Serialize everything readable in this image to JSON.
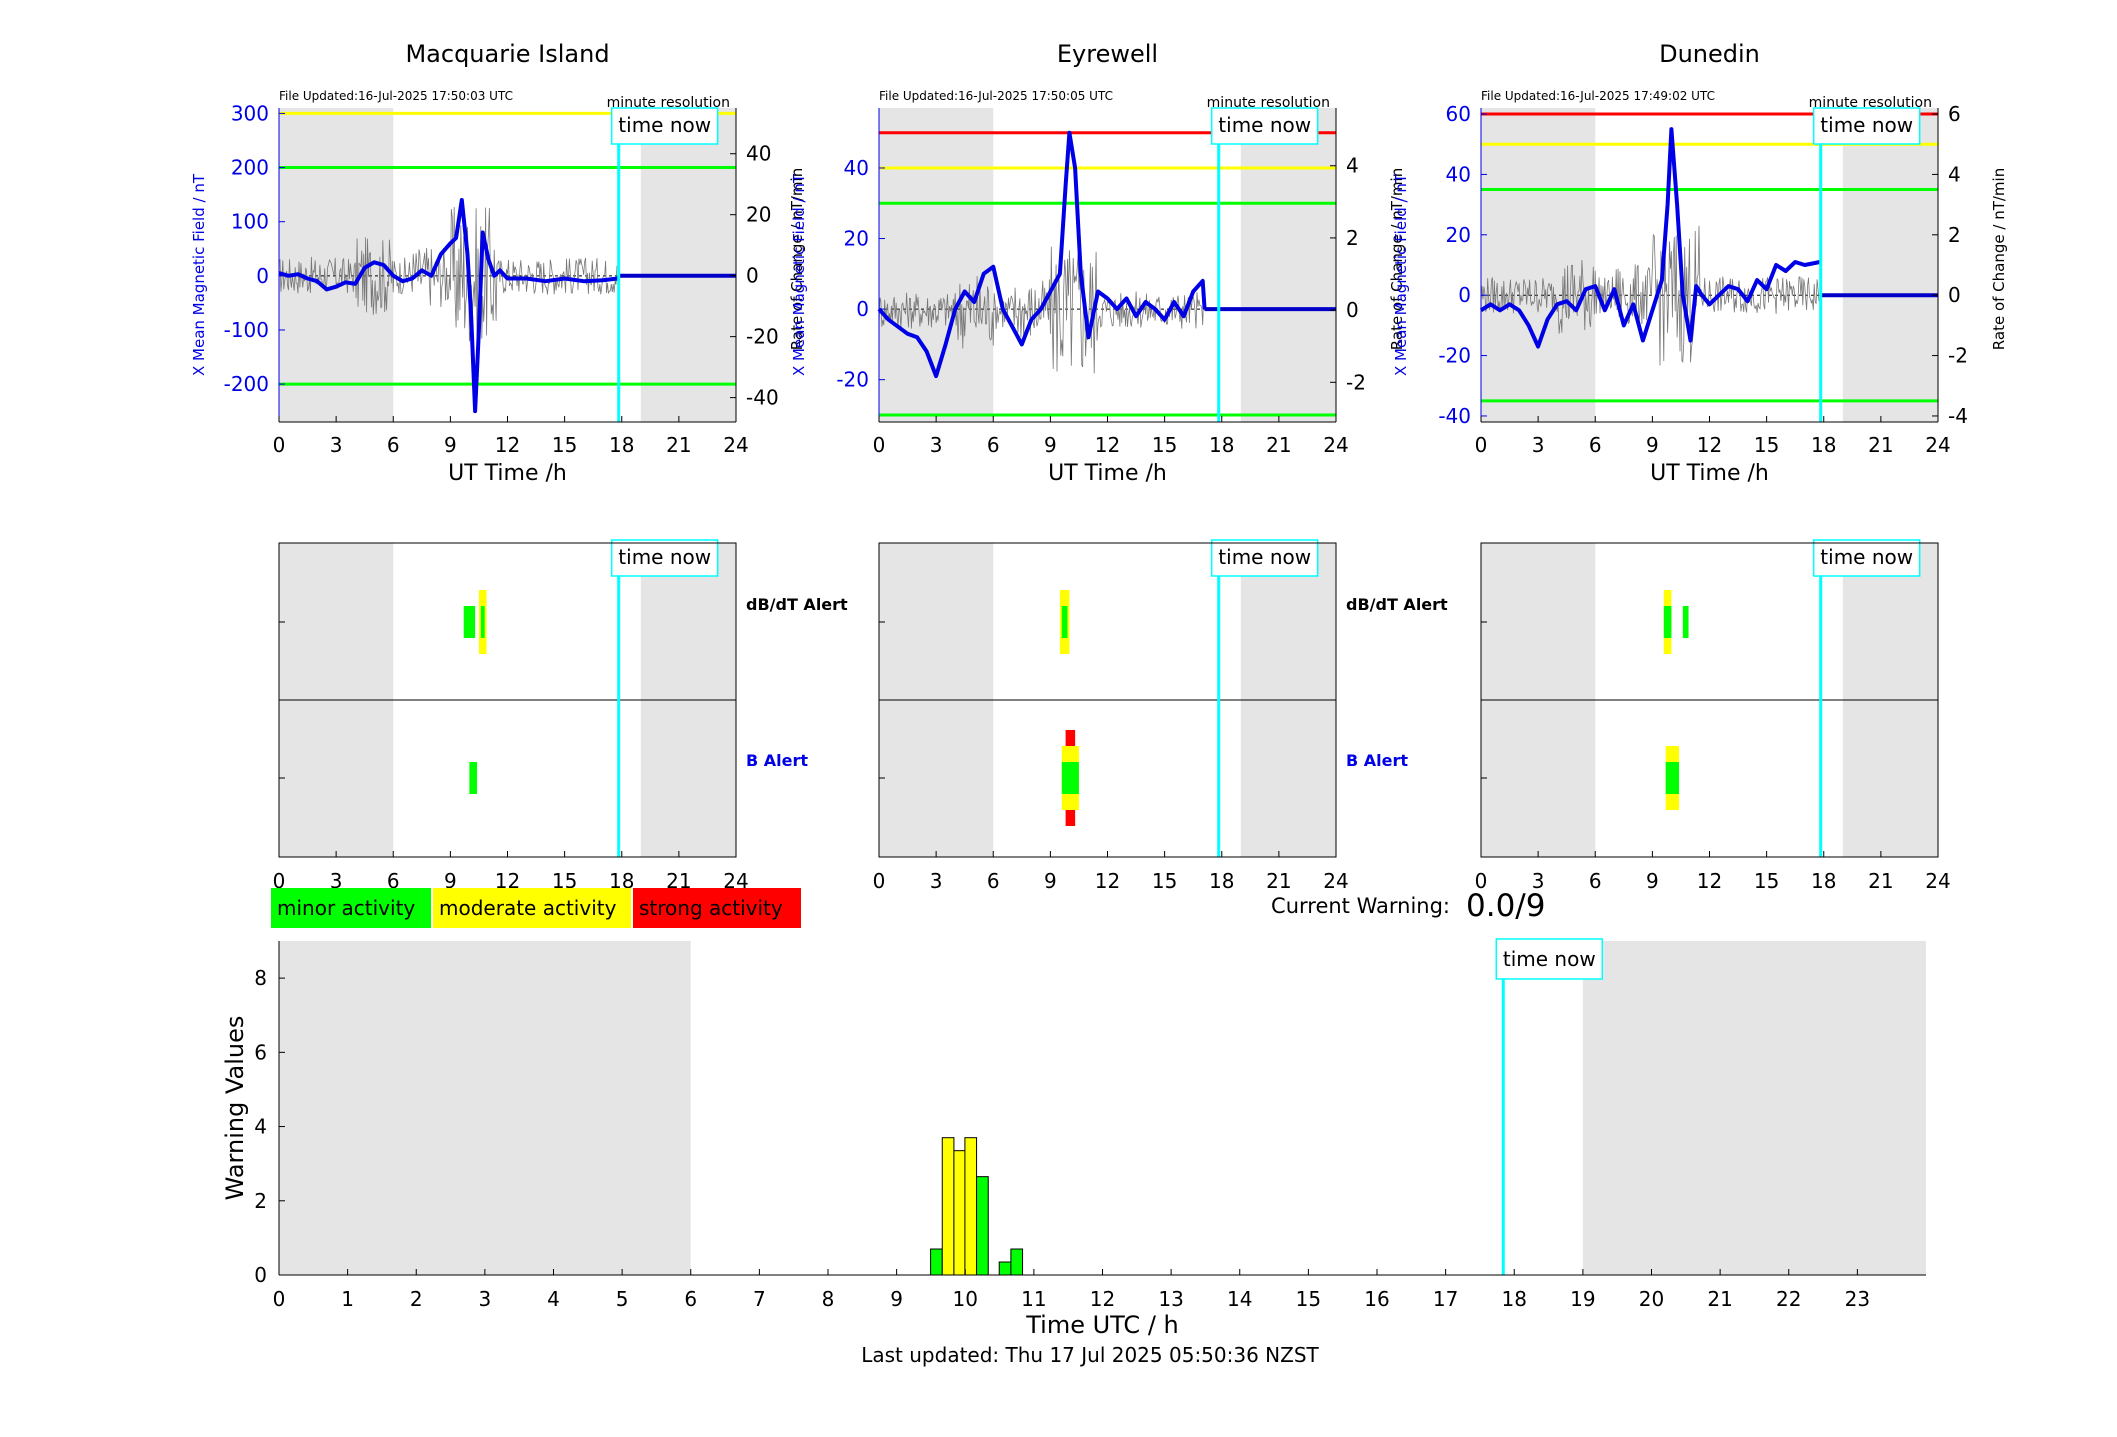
{
  "stations": [
    {
      "title": "Macquarie Island",
      "file_updated": "File Updated:16-Jul-2025 17:50:03 UTC",
      "resolution": "minute resolution",
      "ylabel_left": "X Mean Magnetic Field / nT",
      "ylabel_right": "Rate of Change / nT/min",
      "xlabel": "UT Time /h",
      "ylim": [
        -270,
        310
      ],
      "yticks": [
        -200,
        -100,
        0,
        100,
        200,
        300
      ],
      "ylim_right": [
        -48,
        55
      ],
      "yticks_right": [
        -40,
        -20,
        0,
        20,
        40
      ],
      "thresholds": [
        {
          "value": 300,
          "color": "#ffff00"
        },
        {
          "value": 200,
          "color": "#00ff00"
        },
        {
          "value": -200,
          "color": "#00ff00"
        }
      ],
      "series_field": [
        [
          0,
          5
        ],
        [
          0.5,
          0
        ],
        [
          1,
          3
        ],
        [
          1.5,
          -5
        ],
        [
          2,
          -10
        ],
        [
          2.5,
          -25
        ],
        [
          3,
          -20
        ],
        [
          3.5,
          -12
        ],
        [
          4,
          -15
        ],
        [
          4.5,
          15
        ],
        [
          5,
          25
        ],
        [
          5.5,
          20
        ],
        [
          6,
          0
        ],
        [
          6.5,
          -10
        ],
        [
          7,
          -5
        ],
        [
          7.5,
          10
        ],
        [
          8,
          0
        ],
        [
          8.5,
          40
        ],
        [
          9,
          60
        ],
        [
          9.3,
          70
        ],
        [
          9.6,
          140
        ],
        [
          9.9,
          40
        ],
        [
          10.1,
          -80
        ],
        [
          10.3,
          -250
        ],
        [
          10.5,
          -100
        ],
        [
          10.7,
          80
        ],
        [
          11,
          30
        ],
        [
          11.3,
          0
        ],
        [
          11.6,
          10
        ],
        [
          12,
          -5
        ],
        [
          13,
          -5
        ],
        [
          14,
          -10
        ],
        [
          15,
          -5
        ],
        [
          16,
          -10
        ],
        [
          17,
          -8
        ],
        [
          17.8,
          -5
        ]
      ],
      "series_field_flat": [
        [
          17.8,
          0
        ],
        [
          24,
          0
        ]
      ],
      "alerts": {
        "dbdt": [
          {
            "start": 9.7,
            "end": 10.3,
            "level": "minor"
          },
          {
            "start": 10.5,
            "end": 10.9,
            "level": "moderate"
          },
          {
            "start": 10.6,
            "end": 10.8,
            "level": "minor"
          }
        ],
        "b": [
          {
            "start": 10.0,
            "end": 10.4,
            "level": "minor"
          }
        ]
      }
    },
    {
      "title": "Eyrewell",
      "file_updated": "File Updated:16-Jul-2025 17:50:05 UTC",
      "resolution": "minute resolution",
      "ylabel_left": "X Mean Magnetic Field / nT",
      "ylabel_right": "Rate of Change / nT/min",
      "xlabel": "UT Time /h",
      "ylim": [
        -32,
        57
      ],
      "yticks": [
        -20,
        0,
        20,
        40
      ],
      "ylim_right": [
        -3.1,
        5.6
      ],
      "yticks_right": [
        -2,
        0,
        2,
        4
      ],
      "thresholds": [
        {
          "value": 50,
          "color": "#ff0000"
        },
        {
          "value": 40,
          "color": "#ffff00"
        },
        {
          "value": 30,
          "color": "#00ff00"
        },
        {
          "value": -30,
          "color": "#00ff00"
        }
      ],
      "series_field": [
        [
          0,
          0
        ],
        [
          0.5,
          -3
        ],
        [
          1,
          -5
        ],
        [
          1.5,
          -7
        ],
        [
          2,
          -8
        ],
        [
          2.5,
          -12
        ],
        [
          3,
          -19
        ],
        [
          3.5,
          -10
        ],
        [
          4,
          0
        ],
        [
          4.5,
          5
        ],
        [
          5,
          2
        ],
        [
          5.5,
          10
        ],
        [
          6,
          12
        ],
        [
          6.5,
          0
        ],
        [
          7,
          -5
        ],
        [
          7.5,
          -10
        ],
        [
          8,
          -3
        ],
        [
          8.5,
          0
        ],
        [
          9,
          5
        ],
        [
          9.5,
          10
        ],
        [
          9.8,
          35
        ],
        [
          10,
          50
        ],
        [
          10.3,
          40
        ],
        [
          10.6,
          10
        ],
        [
          11,
          -8
        ],
        [
          11.5,
          5
        ],
        [
          12,
          3
        ],
        [
          12.5,
          0
        ],
        [
          13,
          3
        ],
        [
          13.5,
          -2
        ],
        [
          14,
          2
        ],
        [
          14.5,
          0
        ],
        [
          15,
          -3
        ],
        [
          15.5,
          2
        ],
        [
          16,
          -2
        ],
        [
          16.5,
          5
        ],
        [
          17,
          8
        ],
        [
          17.1,
          0
        ]
      ],
      "series_field_flat": [
        [
          17.1,
          0
        ],
        [
          24,
          0
        ]
      ],
      "alerts": {
        "dbdt": [
          {
            "start": 9.5,
            "end": 10.0,
            "level": "moderate"
          },
          {
            "start": 9.6,
            "end": 9.9,
            "level": "minor"
          }
        ],
        "b": [
          {
            "start": 9.8,
            "end": 10.3,
            "level": "strong"
          },
          {
            "start": 9.6,
            "end": 10.5,
            "level": "moderate"
          },
          {
            "start": 9.6,
            "end": 10.5,
            "level": "minor"
          }
        ]
      }
    },
    {
      "title": "Dunedin",
      "file_updated": "File Updated:16-Jul-2025 17:49:02 UTC",
      "resolution": "minute resolution",
      "ylabel_left": "X Mean Magnetic Field / nT",
      "ylabel_right": "Rate of Change / nT/min",
      "xlabel": "UT Time /h",
      "ylim": [
        -42,
        62
      ],
      "yticks": [
        -40,
        -20,
        0,
        20,
        40,
        60
      ],
      "ylim_right": [
        -4.2,
        6.2
      ],
      "yticks_right": [
        -4,
        -2,
        0,
        2,
        4,
        6
      ],
      "thresholds": [
        {
          "value": 60,
          "color": "#ff0000"
        },
        {
          "value": 50,
          "color": "#ffff00"
        },
        {
          "value": 35,
          "color": "#00ff00"
        },
        {
          "value": -35,
          "color": "#00ff00"
        }
      ],
      "series_field": [
        [
          0,
          -5
        ],
        [
          0.5,
          -3
        ],
        [
          1,
          -5
        ],
        [
          1.5,
          -3
        ],
        [
          2,
          -5
        ],
        [
          2.5,
          -10
        ],
        [
          3,
          -17
        ],
        [
          3.5,
          -8
        ],
        [
          4,
          -3
        ],
        [
          4.5,
          -2
        ],
        [
          5,
          -5
        ],
        [
          5.5,
          2
        ],
        [
          6,
          3
        ],
        [
          6.5,
          -5
        ],
        [
          7,
          2
        ],
        [
          7.5,
          -10
        ],
        [
          8,
          -3
        ],
        [
          8.5,
          -15
        ],
        [
          9,
          -5
        ],
        [
          9.5,
          5
        ],
        [
          9.8,
          30
        ],
        [
          10,
          55
        ],
        [
          10.3,
          30
        ],
        [
          10.6,
          0
        ],
        [
          11,
          -15
        ],
        [
          11.3,
          3
        ],
        [
          11.6,
          0
        ],
        [
          12,
          -3
        ],
        [
          12.5,
          0
        ],
        [
          13,
          3
        ],
        [
          13.5,
          2
        ],
        [
          14,
          -2
        ],
        [
          14.5,
          5
        ],
        [
          15,
          2
        ],
        [
          15.5,
          10
        ],
        [
          16,
          8
        ],
        [
          16.5,
          11
        ],
        [
          17,
          10
        ],
        [
          17.8,
          11
        ]
      ],
      "series_field_flat": [
        [
          17.8,
          0
        ],
        [
          24,
          0
        ]
      ],
      "alerts": {
        "dbdt": [
          {
            "start": 9.6,
            "end": 10.0,
            "level": "moderate"
          },
          {
            "start": 9.6,
            "end": 10.0,
            "level": "minor"
          },
          {
            "start": 10.6,
            "end": 10.9,
            "level": "minor"
          }
        ],
        "b": [
          {
            "start": 9.7,
            "end": 10.4,
            "level": "moderate"
          },
          {
            "start": 9.7,
            "end": 10.4,
            "level": "minor"
          }
        ]
      }
    }
  ],
  "alert_labels": {
    "dbdt": "dB/dT Alert",
    "b": "B Alert"
  },
  "time_now_label": "time now",
  "time_now_hour": 17.84,
  "night_shading": [
    [
      0,
      6
    ],
    [
      19,
      24
    ]
  ],
  "xticks": [
    0,
    3,
    6,
    9,
    12,
    15,
    18,
    21,
    24
  ],
  "legend": [
    {
      "label": "minor activity",
      "color": "#00ff00"
    },
    {
      "label": "moderate activity",
      "color": "#ffff00"
    },
    {
      "label": "strong activity",
      "color": "#ff0000"
    }
  ],
  "current_warning_label": "Current Warning:",
  "current_warning_value": "0.0/9",
  "chart_data": {
    "type": "bar",
    "title": "",
    "xlabel": "Time UTC / h",
    "ylabel": "Warning Values",
    "xlim": [
      0,
      24
    ],
    "ylim": [
      0,
      9
    ],
    "xticks": [
      0,
      1,
      2,
      3,
      4,
      5,
      6,
      7,
      8,
      9,
      10,
      11,
      12,
      13,
      14,
      15,
      16,
      17,
      18,
      19,
      20,
      21,
      22,
      23
    ],
    "yticks": [
      0,
      2,
      4,
      6,
      8
    ],
    "bar_width": 0.17,
    "bars": [
      {
        "x": 9.58,
        "value": 0.7,
        "color": "#00ff00"
      },
      {
        "x": 9.75,
        "value": 3.7,
        "color": "#ffff00"
      },
      {
        "x": 9.92,
        "value": 3.35,
        "color": "#ffff00"
      },
      {
        "x": 10.08,
        "value": 3.7,
        "color": "#ffff00"
      },
      {
        "x": 10.25,
        "value": 2.65,
        "color": "#00ff00"
      },
      {
        "x": 10.58,
        "value": 0.35,
        "color": "#00ff00"
      },
      {
        "x": 10.75,
        "value": 0.7,
        "color": "#00ff00"
      }
    ]
  },
  "last_updated": "Last updated: Thu 17 Jul 2025 05:50:36 NZST"
}
